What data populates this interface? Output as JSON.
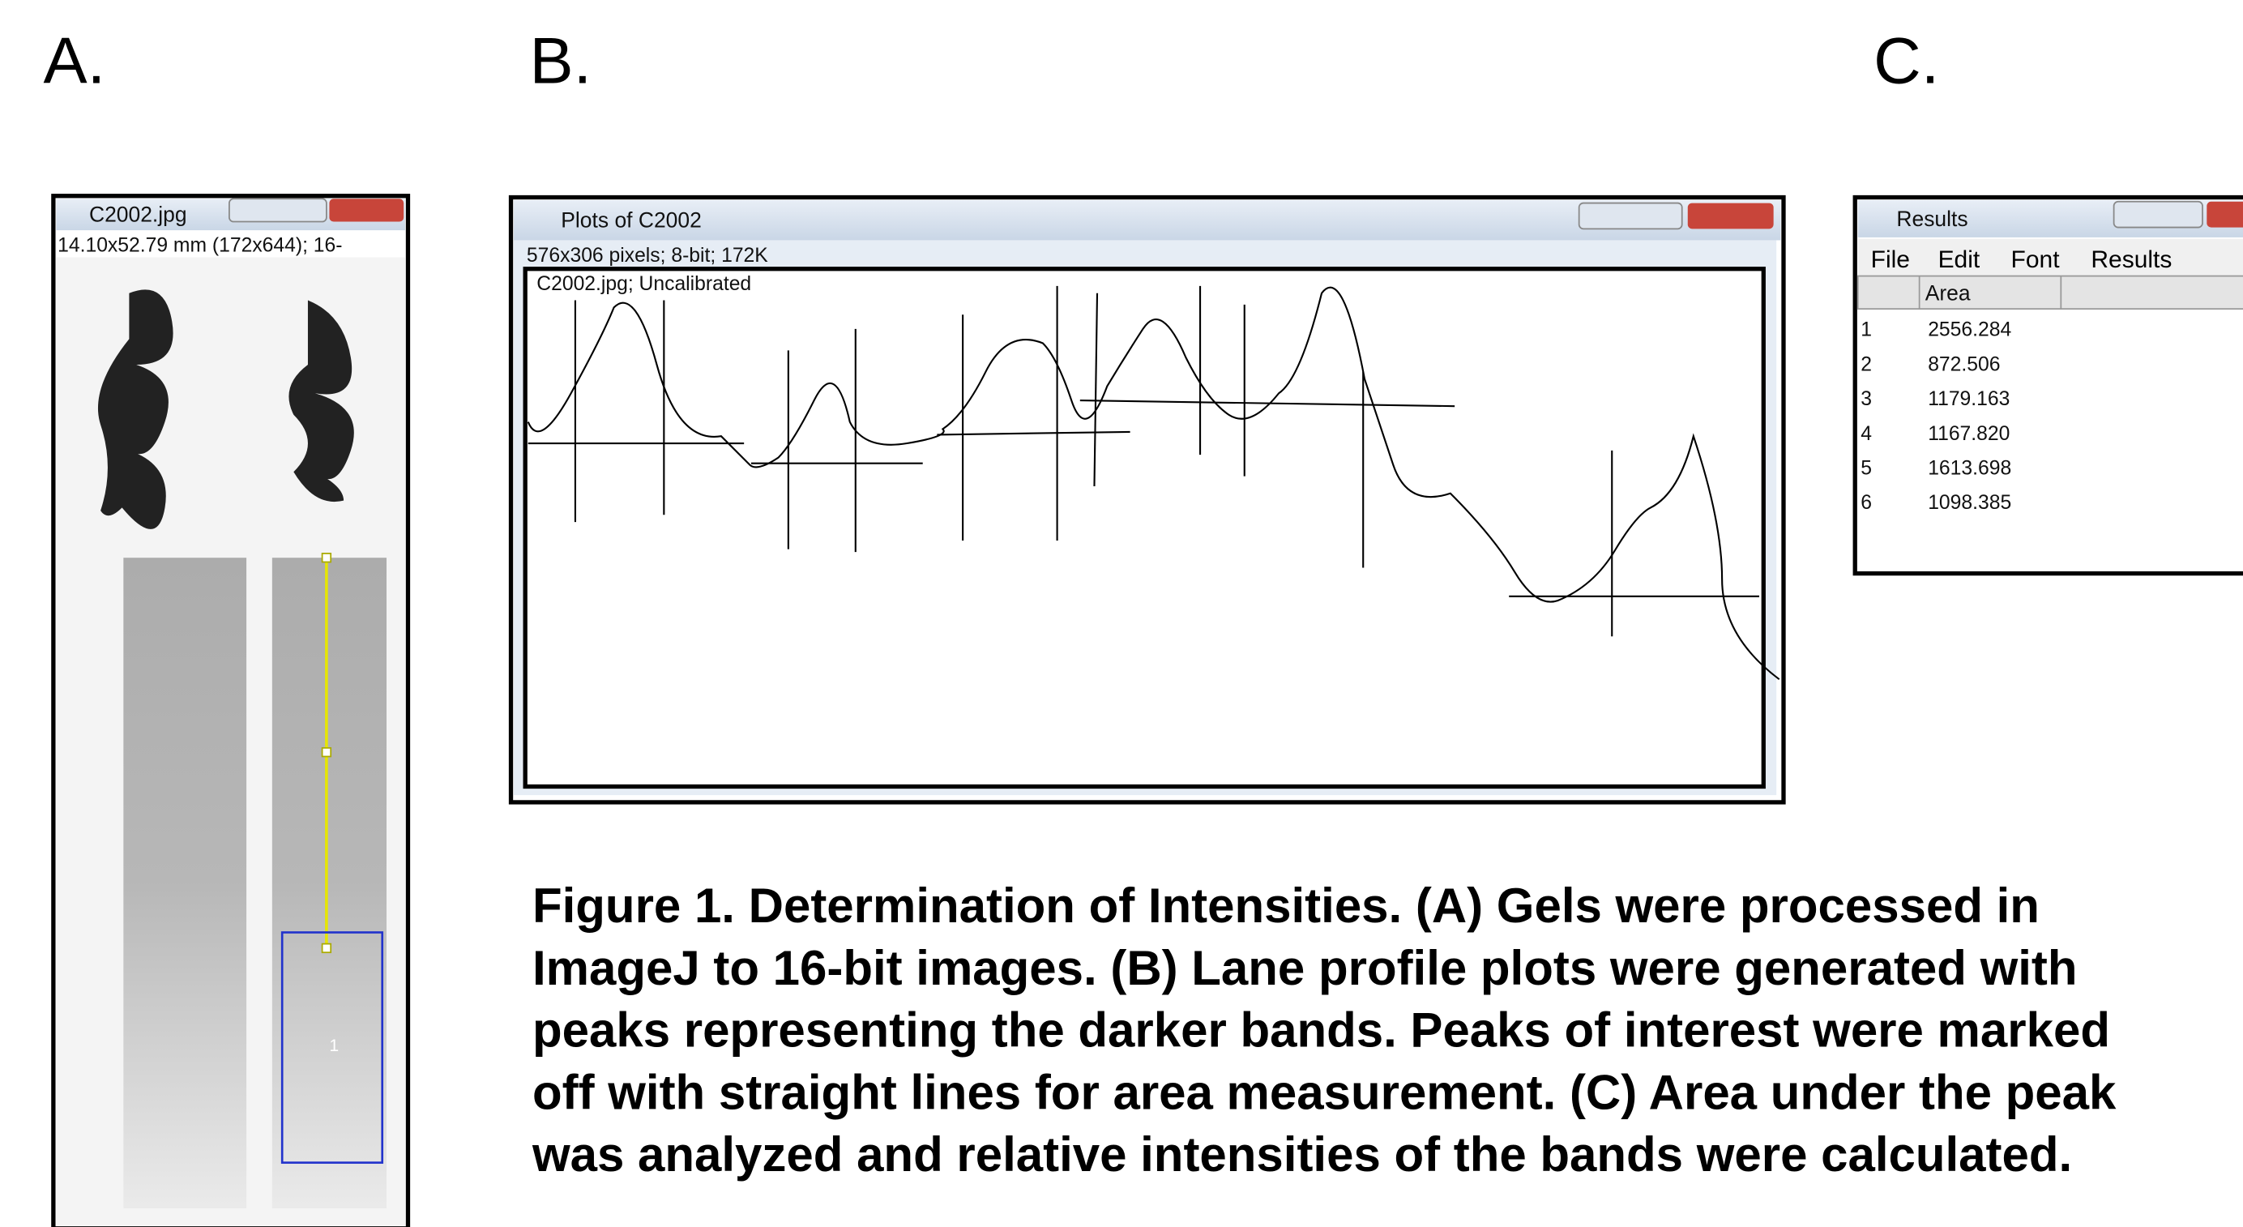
{
  "panels": {
    "a": {
      "label": "A.",
      "window_title": "C2002.jpg",
      "info": "14.10x52.79 mm (172x644); 16-",
      "roi_label": "1"
    },
    "b": {
      "label": "B.",
      "window_title": "Plots of C2002",
      "info": "576x306 pixels; 8-bit; 172K",
      "plot_label": "C2002.jpg; Uncalibrated"
    },
    "c": {
      "label": "C.",
      "window_title": "Results",
      "menu": [
        "File",
        "Edit",
        "Font",
        "Results"
      ],
      "column": "Area",
      "rows": [
        [
          "1",
          "2556.284"
        ],
        [
          "2",
          "872.506"
        ],
        [
          "3",
          "1179.163"
        ],
        [
          "4",
          "1167.820"
        ],
        [
          "5",
          "1613.698"
        ],
        [
          "6",
          "1098.385"
        ]
      ]
    }
  },
  "caption": {
    "lines": [
      "Figure 1. Determination of Intensities. (A) Gels were processed in",
      "ImageJ to 16-bit images. (B) Lane profile plots were generated with",
      "peaks representing the darker bands. Peaks of interest were marked",
      "off with straight lines for area measurement. (C) Area under the peak",
      "was analyzed and relative intensities of the bands were calculated."
    ]
  }
}
